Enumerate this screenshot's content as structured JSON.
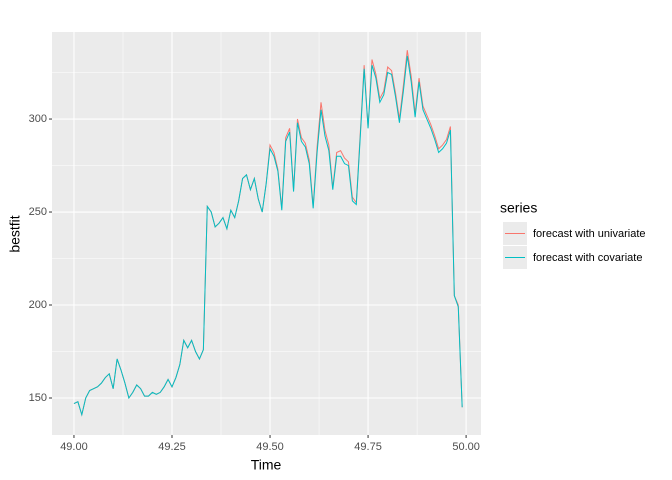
{
  "chart_data": {
    "type": "line",
    "xlabel": "Time",
    "ylabel": "bestfit",
    "legend_title": "series",
    "legend": "right",
    "grid": true,
    "x": [
      49.0,
      49.01,
      49.02,
      49.03,
      49.04,
      49.05,
      49.06,
      49.07,
      49.08,
      49.09,
      49.1,
      49.11,
      49.12,
      49.13,
      49.14,
      49.15,
      49.16,
      49.17,
      49.18,
      49.19,
      49.2,
      49.21,
      49.22,
      49.23,
      49.24,
      49.25,
      49.26,
      49.27,
      49.28,
      49.29,
      49.3,
      49.31,
      49.32,
      49.33,
      49.34,
      49.35,
      49.36,
      49.37,
      49.38,
      49.39,
      49.4,
      49.41,
      49.42,
      49.43,
      49.44,
      49.45,
      49.46,
      49.47,
      49.48,
      49.49,
      49.5,
      49.51,
      49.52,
      49.53,
      49.54,
      49.55,
      49.56,
      49.57,
      49.58,
      49.59,
      49.6,
      49.61,
      49.62,
      49.63,
      49.64,
      49.65,
      49.66,
      49.67,
      49.68,
      49.69,
      49.7,
      49.71,
      49.72,
      49.73,
      49.74,
      49.75,
      49.76,
      49.77,
      49.78,
      49.79,
      49.8,
      49.81,
      49.82,
      49.83,
      49.84,
      49.85,
      49.86,
      49.87,
      49.88,
      49.89,
      49.9,
      49.91,
      49.92,
      49.93,
      49.94,
      49.95,
      49.96,
      49.97,
      49.98,
      49.99
    ],
    "series": [
      {
        "name": "forecast with univariate",
        "color": "#F8766D",
        "values": [
          147,
          148,
          141,
          150,
          154,
          155,
          156,
          158,
          161,
          163,
          155,
          171,
          165,
          158,
          150,
          153,
          157,
          155,
          151,
          151,
          153,
          152,
          153,
          156,
          160,
          156,
          161,
          168,
          181,
          177,
          181,
          175,
          171,
          176,
          253,
          250,
          242,
          244,
          247,
          241,
          251,
          247,
          256,
          268,
          270,
          262,
          268,
          257,
          250,
          265,
          286,
          282,
          273,
          252,
          290,
          295,
          262,
          300,
          290,
          287,
          278,
          253,
          285,
          309,
          294,
          286,
          263,
          282,
          283,
          279,
          277,
          258,
          255,
          292,
          329,
          296,
          332,
          324,
          311,
          315,
          328,
          326,
          314,
          300,
          318,
          337,
          323,
          303,
          322,
          307,
          302,
          297,
          291,
          284,
          286,
          289,
          296,
          205,
          200,
          145
        ]
      },
      {
        "name": "forecast with covariate",
        "color": "#00BFC4",
        "values": [
          147,
          148,
          141,
          150,
          154,
          155,
          156,
          158,
          161,
          163,
          155,
          171,
          165,
          158,
          150,
          153,
          157,
          155,
          151,
          151,
          153,
          152,
          153,
          156,
          160,
          156,
          161,
          168,
          181,
          177,
          181,
          175,
          171,
          176,
          253,
          250,
          242,
          244,
          247,
          241,
          251,
          247,
          256,
          268,
          270,
          262,
          268,
          257,
          250,
          265,
          284,
          280,
          272,
          251,
          288,
          293,
          261,
          298,
          288,
          285,
          276,
          252,
          282,
          305,
          291,
          283,
          262,
          280,
          280,
          276,
          275,
          256,
          254,
          290,
          327,
          295,
          329,
          322,
          309,
          313,
          325,
          324,
          312,
          298,
          315,
          334,
          320,
          301,
          320,
          305,
          300,
          295,
          289,
          282,
          284,
          287,
          294,
          205,
          199,
          145
        ]
      }
    ],
    "xlim": [
      48.944,
      50.038
    ],
    "xticks": [
      {
        "value": 49,
        "label": "49.00"
      },
      49.25,
      {
        "value": 49.5,
        "label": "49.50"
      },
      49.75,
      {
        "value": 50,
        "label": "50.00"
      }
    ],
    "xminor": [
      49.125,
      49.375,
      49.625,
      49.875
    ],
    "ylim": [
      130.1,
      346.8
    ],
    "yticks": [
      150,
      200,
      250,
      300
    ],
    "yminor": [
      175,
      225,
      275,
      325
    ]
  }
}
